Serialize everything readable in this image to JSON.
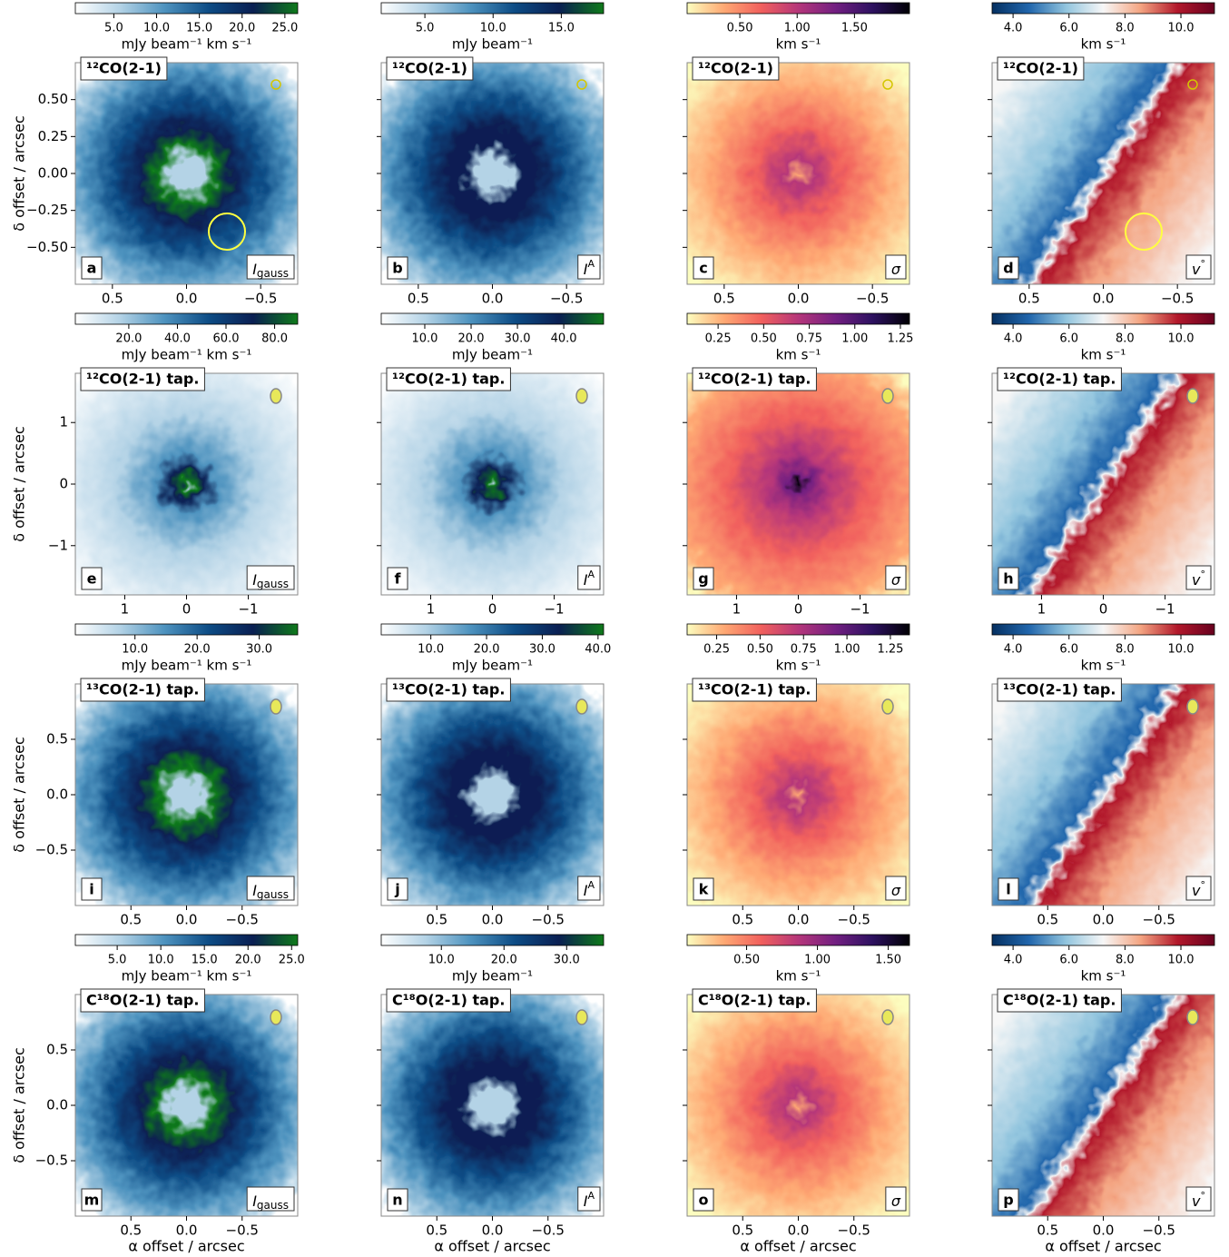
{
  "chart_data": [
    {
      "type": "image",
      "title": "¹²CO(2-1)",
      "letter": "a",
      "symbol": "I",
      "subscript": "gauss",
      "colorbar_label": "mJy beam⁻¹ km s⁻¹",
      "clim": [
        0.5,
        26.5
      ],
      "cticks": [
        {
          "value": 5,
          "label": "5.0"
        },
        {
          "value": 10,
          "label": "10.0"
        },
        {
          "value": 15,
          "label": "15.0"
        },
        {
          "value": 20,
          "label": "20.0"
        },
        {
          "value": 25,
          "label": "25.0"
        }
      ],
      "xlim": [
        0.75,
        -0.75
      ],
      "xticks": [
        0.5,
        {
          "value": 0,
          "label": "0.0"
        },
        {
          "value": -0.5,
          "label": "−0.5"
        }
      ],
      "ylim": [
        -0.75,
        0.75
      ],
      "yticks": [
        {
          "value": -0.5,
          "label": "−0.50"
        },
        {
          "value": -0.25,
          "label": "−0.25"
        },
        {
          "value": 0,
          "label": "0.00"
        },
        0.25,
        {
          "value": 0.5,
          "label": "0.50"
        }
      ],
      "ylabel": "δ  offset / arcsec",
      "colors": [
        "#ffffff",
        "#b4d3e6",
        "#4e93bf",
        "#0d4c85",
        "#0a1f52",
        "#0f7a1a"
      ]
    },
    {
      "type": "image",
      "title": "¹²CO(2-1)",
      "letter": "b",
      "symbol": "I",
      "superscript": "A",
      "colorbar_label": "mJy beam⁻¹",
      "clim": [
        1.8,
        18.1
      ],
      "cticks": [
        {
          "value": 5,
          "label": "5.0"
        },
        {
          "value": 10,
          "label": "10.0"
        },
        {
          "value": 15,
          "label": "15.0"
        }
      ],
      "xlim": [
        0.75,
        -0.75
      ],
      "xticks": [
        0.5,
        {
          "value": 0,
          "label": "0.0"
        },
        {
          "value": -0.5,
          "label": "−0.5"
        }
      ],
      "ylim": [
        -0.75,
        0.75
      ],
      "yticks": [
        {
          "value": -0.5,
          "label": "−0.50"
        },
        {
          "value": -0.25,
          "label": "−0.25"
        },
        {
          "value": 0,
          "label": "0.00"
        },
        0.25,
        {
          "value": 0.5,
          "label": "0.50"
        }
      ],
      "colors": [
        "#ffffff",
        "#b4d3e6",
        "#4e93bf",
        "#0d4c85",
        "#0a1f52",
        "#0f7a1a"
      ]
    },
    {
      "type": "image",
      "title": "¹²CO(2-1)",
      "letter": "c",
      "symbol": "σ",
      "colorbar_label": "km s⁻¹",
      "clim": [
        0.04,
        1.98
      ],
      "cticks": [
        {
          "value": 0.5,
          "label": "0.50"
        },
        {
          "value": 1,
          "label": "1.00"
        },
        {
          "value": 1.5,
          "label": "1.50"
        }
      ],
      "xlim": [
        0.75,
        -0.75
      ],
      "xticks": [
        0.5,
        {
          "value": 0,
          "label": "0.0"
        },
        {
          "value": -0.5,
          "label": "−0.5"
        }
      ],
      "ylim": [
        -0.75,
        0.75
      ],
      "yticks": [
        {
          "value": -0.5,
          "label": "−0.50"
        },
        {
          "value": -0.25,
          "label": "−0.25"
        },
        {
          "value": 0,
          "label": "0.00"
        },
        0.25,
        {
          "value": 0.5,
          "label": "0.50"
        }
      ],
      "colors": [
        "#fcfdbf",
        "#fea873",
        "#f1605d",
        "#b5367a",
        "#721f81",
        "#2d1160",
        "#000004"
      ]
    },
    {
      "type": "image",
      "title": "¹²CO(2-1)",
      "letter": "d",
      "symbol": "v",
      "superscript": "°",
      "colorbar_label": "km s⁻¹",
      "clim": [
        3.25,
        11.2
      ],
      "cticks": [
        {
          "value": 4,
          "label": "4.0"
        },
        {
          "value": 6,
          "label": "6.0"
        },
        {
          "value": 8,
          "label": "8.0"
        },
        {
          "value": 10,
          "label": "10.0"
        }
      ],
      "xlim": [
        0.75,
        -0.75
      ],
      "xticks": [
        0.5,
        {
          "value": 0,
          "label": "0.0"
        },
        {
          "value": -0.5,
          "label": "−0.5"
        }
      ],
      "ylim": [
        -0.75,
        0.75
      ],
      "yticks": [
        {
          "value": -0.5,
          "label": "−0.50"
        },
        {
          "value": -0.25,
          "label": "−0.25"
        },
        {
          "value": 0,
          "label": "0.00"
        },
        0.25,
        {
          "value": 0.5,
          "label": "0.50"
        }
      ],
      "colors": [
        "#053061",
        "#2166ac",
        "#92c5de",
        "#f7f7f7",
        "#f4a582",
        "#b2182b",
        "#67001f"
      ]
    },
    {
      "type": "image",
      "title": "¹²CO(2-1) tap.",
      "letter": "e",
      "symbol": "I",
      "subscript": "gauss",
      "colorbar_label": "mJy beam⁻¹ km s⁻¹",
      "clim": [
        -2,
        89.5
      ],
      "cticks": [
        {
          "value": 20,
          "label": "20.0"
        },
        {
          "value": 40,
          "label": "40.0"
        },
        {
          "value": 60,
          "label": "60.0"
        },
        {
          "value": 80,
          "label": "80.0"
        }
      ],
      "xlim": [
        1.8,
        -1.8
      ],
      "xticks": [
        1,
        0,
        {
          "value": -1,
          "label": "−1"
        }
      ],
      "ylim": [
        -1.8,
        1.8
      ],
      "yticks": [
        {
          "value": -1,
          "label": "−1"
        },
        0,
        1
      ],
      "ylabel": "δ  offset / arcsec",
      "colors": [
        "#ffffff",
        "#b4d3e6",
        "#4e93bf",
        "#0d4c85",
        "#0a1f52",
        "#0f7a1a"
      ]
    },
    {
      "type": "image",
      "title": "¹²CO(2-1) tap.",
      "letter": "f",
      "symbol": "I",
      "superscript": "A",
      "colorbar_label": "mJy beam⁻¹",
      "clim": [
        0.6,
        48.6
      ],
      "cticks": [
        {
          "value": 10,
          "label": "10.0"
        },
        {
          "value": 20,
          "label": "20.0"
        },
        {
          "value": 30,
          "label": "30.0"
        },
        {
          "value": 40,
          "label": "40.0"
        }
      ],
      "xlim": [
        1.8,
        -1.8
      ],
      "xticks": [
        1,
        0,
        {
          "value": -1,
          "label": "−1"
        }
      ],
      "ylim": [
        -1.8,
        1.8
      ],
      "yticks": [
        {
          "value": -1,
          "label": "−1"
        },
        0,
        1
      ],
      "colors": [
        "#ffffff",
        "#b4d3e6",
        "#4e93bf",
        "#0d4c85",
        "#0a1f52",
        "#0f7a1a"
      ]
    },
    {
      "type": "image",
      "title": "¹²CO(2-1) tap.",
      "letter": "g",
      "symbol": "σ",
      "colorbar_label": "km s⁻¹",
      "clim": [
        0.08,
        1.3
      ],
      "cticks": [
        0.25,
        {
          "value": 0.5,
          "label": "0.50"
        },
        0.75,
        {
          "value": 1,
          "label": "1.00"
        },
        1.25
      ],
      "xlim": [
        1.8,
        -1.8
      ],
      "xticks": [
        1,
        0,
        {
          "value": -1,
          "label": "−1"
        }
      ],
      "ylim": [
        -1.8,
        1.8
      ],
      "yticks": [
        {
          "value": -1,
          "label": "−1"
        },
        0,
        1
      ],
      "colors": [
        "#fcfdbf",
        "#fea873",
        "#f1605d",
        "#b5367a",
        "#721f81",
        "#2d1160",
        "#000004"
      ]
    },
    {
      "type": "image",
      "title": "¹²CO(2-1) tap.",
      "letter": "h",
      "symbol": "v",
      "superscript": "°",
      "colorbar_label": "km s⁻¹",
      "clim": [
        3.25,
        11.2
      ],
      "cticks": [
        {
          "value": 4,
          "label": "4.0"
        },
        {
          "value": 6,
          "label": "6.0"
        },
        {
          "value": 8,
          "label": "8.0"
        },
        {
          "value": 10,
          "label": "10.0"
        }
      ],
      "xlim": [
        1.8,
        -1.8
      ],
      "xticks": [
        1,
        0,
        {
          "value": -1,
          "label": "−1"
        }
      ],
      "ylim": [
        -1.8,
        1.8
      ],
      "yticks": [
        {
          "value": -1,
          "label": "−1"
        },
        0,
        1
      ],
      "colors": [
        "#053061",
        "#2166ac",
        "#92c5de",
        "#f7f7f7",
        "#f4a582",
        "#b2182b",
        "#67001f"
      ]
    },
    {
      "type": "image",
      "title": "¹³CO(2-1) tap.",
      "letter": "i",
      "symbol": "I",
      "subscript": "gauss",
      "colorbar_label": "mJy beam⁻¹ km s⁻¹",
      "clim": [
        0.4,
        36.2
      ],
      "cticks": [
        {
          "value": 10,
          "label": "10.0"
        },
        {
          "value": 20,
          "label": "20.0"
        },
        {
          "value": 30,
          "label": "30.0"
        }
      ],
      "xlim": [
        1,
        -1
      ],
      "xticks": [
        0.5,
        {
          "value": 0,
          "label": "0.0"
        },
        {
          "value": -0.5,
          "label": "−0.5"
        }
      ],
      "ylim": [
        -1,
        1
      ],
      "yticks": [
        {
          "value": -0.5,
          "label": "−0.5"
        },
        {
          "value": 0,
          "label": "0.0"
        },
        0.5
      ],
      "ylabel": "δ  offset / arcsec",
      "colors": [
        "#ffffff",
        "#b4d3e6",
        "#4e93bf",
        "#0d4c85",
        "#0a1f52",
        "#0f7a1a"
      ]
    },
    {
      "type": "image",
      "title": "¹³CO(2-1) tap.",
      "letter": "j",
      "symbol": "I",
      "superscript": "A",
      "colorbar_label": "mJy beam⁻¹",
      "clim": [
        1.1,
        41
      ],
      "cticks": [
        {
          "value": 10,
          "label": "10.0"
        },
        {
          "value": 20,
          "label": "20.0"
        },
        {
          "value": 30,
          "label": "30.0"
        },
        {
          "value": 40,
          "label": "40.0"
        }
      ],
      "xlim": [
        1,
        -1
      ],
      "xticks": [
        0.5,
        {
          "value": 0,
          "label": "0.0"
        },
        {
          "value": -0.5,
          "label": "−0.5"
        }
      ],
      "ylim": [
        -1,
        1
      ],
      "yticks": [
        {
          "value": -0.5,
          "label": "−0.5"
        },
        {
          "value": 0,
          "label": "0.0"
        },
        0.5
      ],
      "colors": [
        "#ffffff",
        "#b4d3e6",
        "#4e93bf",
        "#0d4c85",
        "#0a1f52",
        "#0f7a1a"
      ]
    },
    {
      "type": "image",
      "title": "¹³CO(2-1) tap.",
      "letter": "k",
      "symbol": "σ",
      "colorbar_label": "km s⁻¹",
      "clim": [
        0.08,
        1.36
      ],
      "cticks": [
        0.25,
        {
          "value": 0.5,
          "label": "0.50"
        },
        0.75,
        {
          "value": 1,
          "label": "1.00"
        },
        1.25
      ],
      "xlim": [
        1,
        -1
      ],
      "xticks": [
        0.5,
        {
          "value": 0,
          "label": "0.0"
        },
        {
          "value": -0.5,
          "label": "−0.5"
        }
      ],
      "ylim": [
        -1,
        1
      ],
      "yticks": [
        {
          "value": -0.5,
          "label": "−0.5"
        },
        {
          "value": 0,
          "label": "0.0"
        },
        0.5
      ],
      "colors": [
        "#fcfdbf",
        "#fea873",
        "#f1605d",
        "#b5367a",
        "#721f81",
        "#2d1160",
        "#000004"
      ]
    },
    {
      "type": "image",
      "title": "¹³CO(2-1) tap.",
      "letter": "l",
      "symbol": "v",
      "superscript": "°",
      "colorbar_label": "km s⁻¹",
      "clim": [
        3.25,
        11.2
      ],
      "cticks": [
        {
          "value": 4,
          "label": "4.0"
        },
        {
          "value": 6,
          "label": "6.0"
        },
        {
          "value": 8,
          "label": "8.0"
        },
        {
          "value": 10,
          "label": "10.0"
        }
      ],
      "xlim": [
        1,
        -1
      ],
      "xticks": [
        0.5,
        {
          "value": 0,
          "label": "0.0"
        },
        {
          "value": -0.5,
          "label": "−0.5"
        }
      ],
      "ylim": [
        -1,
        1
      ],
      "yticks": [
        {
          "value": -0.5,
          "label": "−0.5"
        },
        {
          "value": 0,
          "label": "0.0"
        },
        0.5
      ],
      "colors": [
        "#053061",
        "#2166ac",
        "#92c5de",
        "#f7f7f7",
        "#f4a582",
        "#b2182b",
        "#67001f"
      ]
    },
    {
      "type": "image",
      "title": "C¹⁸O(2-1) tap.",
      "letter": "m",
      "symbol": "I",
      "subscript": "gauss",
      "colorbar_label": "mJy beam⁻¹ km s⁻¹",
      "clim": [
        0.2,
        25.7
      ],
      "cticks": [
        {
          "value": 5,
          "label": "5.0"
        },
        {
          "value": 10,
          "label": "10.0"
        },
        {
          "value": 15,
          "label": "15.0"
        },
        {
          "value": 20,
          "label": "20.0"
        },
        {
          "value": 25,
          "label": "25.0"
        }
      ],
      "xlim": [
        1,
        -1
      ],
      "xticks": [
        0.5,
        {
          "value": 0,
          "label": "0.0"
        },
        {
          "value": -0.5,
          "label": "−0.5"
        }
      ],
      "ylim": [
        -1,
        1
      ],
      "yticks": [
        {
          "value": -0.5,
          "label": "−0.5"
        },
        {
          "value": 0,
          "label": "0.0"
        },
        0.5
      ],
      "ylabel": "δ  offset / arcsec",
      "xlabel": "α offset / arcsec",
      "colors": [
        "#ffffff",
        "#b4d3e6",
        "#4e93bf",
        "#0d4c85",
        "#0a1f52",
        "#0f7a1a"
      ]
    },
    {
      "type": "image",
      "title": "C¹⁸O(2-1) tap.",
      "letter": "n",
      "symbol": "I",
      "superscript": "A",
      "colorbar_label": "mJy beam⁻¹",
      "clim": [
        0.4,
        35.9
      ],
      "cticks": [
        {
          "value": 10,
          "label": "10.0"
        },
        {
          "value": 20,
          "label": "20.0"
        },
        {
          "value": 30,
          "label": "30.0"
        }
      ],
      "xlim": [
        1,
        -1
      ],
      "xticks": [
        0.5,
        {
          "value": 0,
          "label": "0.0"
        },
        {
          "value": -0.5,
          "label": "−0.5"
        }
      ],
      "ylim": [
        -1,
        1
      ],
      "yticks": [
        {
          "value": -0.5,
          "label": "−0.5"
        },
        {
          "value": 0,
          "label": "0.0"
        },
        0.5
      ],
      "xlabel": "α offset / arcsec",
      "colors": [
        "#ffffff",
        "#b4d3e6",
        "#4e93bf",
        "#0d4c85",
        "#0a1f52",
        "#0f7a1a"
      ]
    },
    {
      "type": "image",
      "title": "C¹⁸O(2-1) tap.",
      "letter": "o",
      "symbol": "σ",
      "colorbar_label": "km s⁻¹",
      "clim": [
        0.08,
        1.65
      ],
      "cticks": [
        {
          "value": 0.5,
          "label": "0.50"
        },
        {
          "value": 1,
          "label": "1.00"
        },
        {
          "value": 1.5,
          "label": "1.50"
        }
      ],
      "xlim": [
        1,
        -1
      ],
      "xticks": [
        0.5,
        {
          "value": 0,
          "label": "0.0"
        },
        {
          "value": -0.5,
          "label": "−0.5"
        }
      ],
      "ylim": [
        -1,
        1
      ],
      "yticks": [
        {
          "value": -0.5,
          "label": "−0.5"
        },
        {
          "value": 0,
          "label": "0.0"
        },
        0.5
      ],
      "xlabel": "α offset / arcsec",
      "colors": [
        "#fcfdbf",
        "#fea873",
        "#f1605d",
        "#b5367a",
        "#721f81",
        "#2d1160",
        "#000004"
      ]
    },
    {
      "type": "image",
      "title": "C¹⁸O(2-1) tap.",
      "letter": "p",
      "symbol": "v",
      "superscript": "°",
      "colorbar_label": "km s⁻¹",
      "clim": [
        3.25,
        11.2
      ],
      "cticks": [
        {
          "value": 4,
          "label": "4.0"
        },
        {
          "value": 6,
          "label": "6.0"
        },
        {
          "value": 8,
          "label": "8.0"
        },
        {
          "value": 10,
          "label": "10.0"
        }
      ],
      "xlim": [
        1,
        -1
      ],
      "xticks": [
        0.5,
        {
          "value": 0,
          "label": "0.0"
        },
        {
          "value": -0.5,
          "label": "−0.5"
        }
      ],
      "ylim": [
        -1,
        1
      ],
      "yticks": [
        {
          "value": -0.5,
          "label": "−0.5"
        },
        {
          "value": 0,
          "label": "0.0"
        },
        0.5
      ],
      "xlabel": "α offset / arcsec",
      "colors": [
        "#053061",
        "#2166ac",
        "#92c5de",
        "#f7f7f7",
        "#f4a582",
        "#b2182b",
        "#67001f"
      ]
    }
  ]
}
